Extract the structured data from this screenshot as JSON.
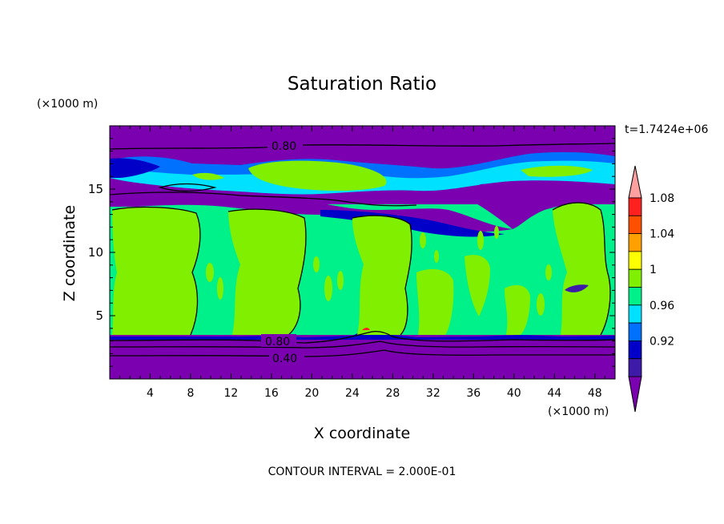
{
  "chart_data": {
    "type": "heatmap",
    "title": "Saturation Ratio",
    "xlabel": "X coordinate",
    "ylabel": "Z coordinate",
    "x_unit": "(×1000 m)",
    "y_unit": "(×1000 m)",
    "time_label": "t=1.7424e+06",
    "footer": "CONTOUR INTERVAL = 2.000E-01",
    "xlim": [
      0,
      50
    ],
    "ylim": [
      0,
      20
    ],
    "x_ticks": [
      4,
      8,
      12,
      16,
      20,
      24,
      28,
      32,
      36,
      40,
      44,
      48
    ],
    "y_ticks": [
      5,
      10,
      15
    ],
    "contour_labels": [
      "0.80",
      "0.80",
      "0.40"
    ],
    "colorbar": {
      "labels": [
        "0.92",
        "0.96",
        "1",
        "1.04",
        "1.08"
      ],
      "colors": [
        "#7a00b0",
        "#3e1aa8",
        "#0000c8",
        "#0070ff",
        "#00e0ff",
        "#00f08a",
        "#80f000",
        "#ffff00",
        "#ffa000",
        "#ff5000",
        "#ff2020",
        "#ffa0a0"
      ]
    },
    "palette": {
      "below": "#7a00b0",
      "c092": "#3e1aa8",
      "c094": "#0000c8",
      "c096": "#0070ff",
      "c098": "#00e0ff",
      "c100": "#00f08a",
      "c102": "#80f000",
      "c104": "#ffff00",
      "c106": "#ffa000",
      "c108": "#ff2020",
      "above": "#ffa0a0"
    }
  }
}
